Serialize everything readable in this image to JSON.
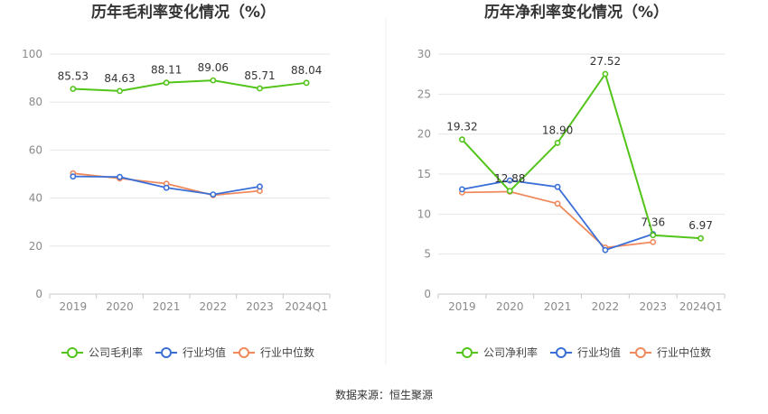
{
  "source": "数据来源：恒生聚源",
  "chart_data": [
    {
      "type": "line",
      "title": "历年毛利率变化情况（%）",
      "categories": [
        "2019",
        "2020",
        "2021",
        "2022",
        "2023",
        "2024Q1"
      ],
      "ylim": [
        0,
        100
      ],
      "yticks": [
        0,
        20,
        40,
        60,
        80,
        100
      ],
      "grid": true,
      "legend_position": "bottom",
      "series": [
        {
          "name": "公司毛利率",
          "color": "#52c41a",
          "values": [
            85.53,
            84.63,
            88.11,
            89.06,
            85.71,
            88.04
          ],
          "labels": [
            "85.53",
            "84.63",
            "88.11",
            "89.06",
            "85.71",
            "88.04"
          ]
        },
        {
          "name": "行业均值",
          "color": "#3a6fd8",
          "values": [
            49.0,
            48.8,
            44.3,
            41.5,
            44.8,
            null
          ]
        },
        {
          "name": "行业中位数",
          "color": "#f08a5d",
          "values": [
            50.3,
            48.2,
            46.0,
            41.2,
            43.0,
            null
          ]
        }
      ]
    },
    {
      "type": "line",
      "title": "历年净利率变化情况（%）",
      "categories": [
        "2019",
        "2020",
        "2021",
        "2022",
        "2023",
        "2024Q1"
      ],
      "ylim": [
        0,
        30
      ],
      "yticks": [
        0,
        5,
        10,
        15,
        20,
        25,
        30
      ],
      "grid": true,
      "legend_position": "bottom",
      "series": [
        {
          "name": "公司净利率",
          "color": "#52c41a",
          "values": [
            19.32,
            12.88,
            18.9,
            27.52,
            7.36,
            6.97
          ],
          "labels": [
            "19.32",
            "12.88",
            "18.90",
            "27.52",
            "7.36",
            "6.97"
          ]
        },
        {
          "name": "行业均值",
          "color": "#3a6fd8",
          "values": [
            13.1,
            14.2,
            13.4,
            5.5,
            7.5,
            null
          ]
        },
        {
          "name": "行业中位数",
          "color": "#f08a5d",
          "values": [
            12.7,
            12.8,
            11.3,
            5.8,
            6.5,
            null
          ]
        }
      ]
    }
  ]
}
